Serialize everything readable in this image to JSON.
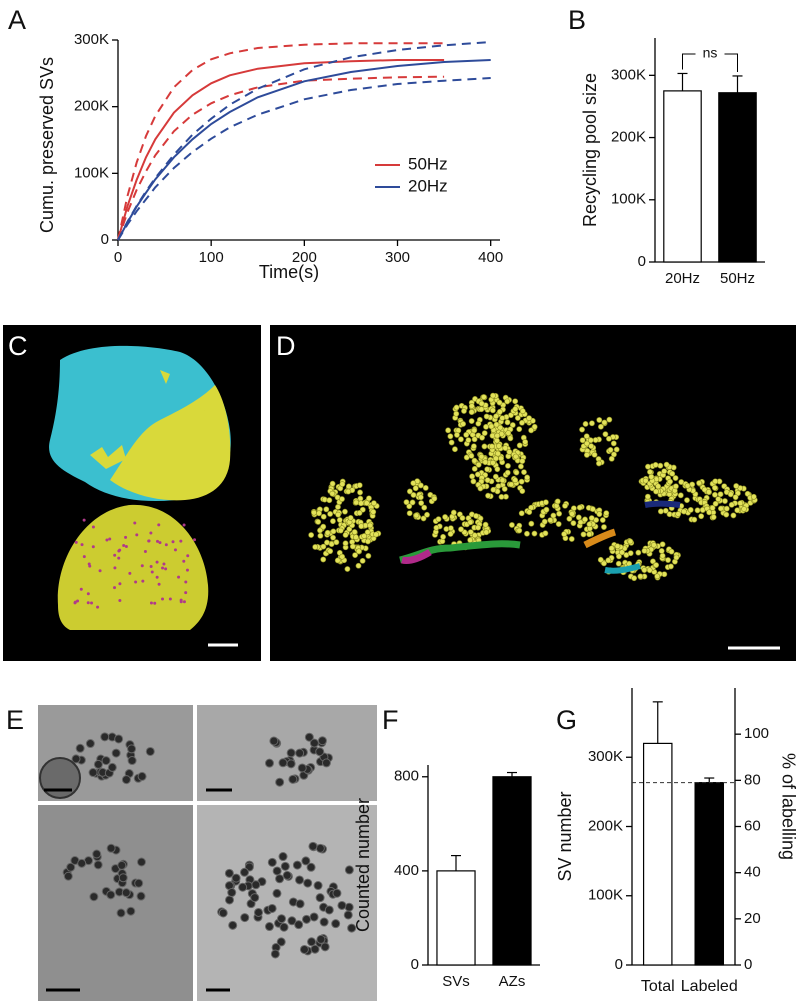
{
  "image_panels": [
    {
      "label": "C"
    },
    {
      "label": "D"
    },
    {
      "label": "E"
    }
  ],
  "chart_data": [
    {
      "type": "line",
      "panel": "A",
      "y_label": "Cumu. preserved SVs",
      "x_label": "Time(s)",
      "x": [
        0,
        10,
        20,
        30,
        40,
        60,
        80,
        100,
        120,
        150,
        200,
        250,
        300,
        350,
        400
      ],
      "xlim": [
        0,
        410
      ],
      "xticks": [
        0,
        100,
        200,
        300,
        400
      ],
      "ylim": [
        0,
        300000
      ],
      "yticks": [
        0,
        {
          "value": 100000,
          "label": "100K"
        },
        {
          "value": 200000,
          "label": "200K"
        },
        {
          "value": 300000,
          "label": "300K"
        }
      ],
      "series": [
        {
          "name": "50Hz",
          "color": "#d63a3a",
          "values": [
            0,
            50000,
            90000,
            124000,
            151000,
            191000,
            217000,
            235000,
            247000,
            257000,
            265000,
            268000,
            270000,
            270000,
            null
          ],
          "upper": [
            0,
            65000,
            116000,
            156000,
            186000,
            229000,
            255000,
            271000,
            280000,
            288000,
            293000,
            295000,
            295000,
            295000,
            null
          ],
          "lower": [
            0,
            41000,
            75000,
            103000,
            127000,
            163000,
            188000,
            205000,
            217000,
            229000,
            239000,
            242000,
            244000,
            245000,
            null
          ]
        },
        {
          "name": "20Hz",
          "color": "#2e4b9a",
          "values": [
            0,
            26000,
            50000,
            71000,
            91000,
            124000,
            151000,
            174000,
            192000,
            214000,
            238000,
            252000,
            261000,
            267000,
            270000
          ],
          "upper": [
            0,
            27000,
            51000,
            73000,
            93000,
            128000,
            158000,
            182000,
            203000,
            227000,
            256000,
            274000,
            285000,
            292000,
            297000
          ],
          "lower": [
            0,
            23000,
            43000,
            61000,
            79000,
            108000,
            132000,
            152000,
            169000,
            188000,
            211000,
            225000,
            234000,
            239000,
            243000
          ]
        }
      ]
    },
    {
      "type": "bar",
      "panel": "B",
      "y_label": "Recycling pool size",
      "annotation": "ns",
      "categories": [
        "20Hz",
        "50Hz"
      ],
      "values": [
        275000,
        272000
      ],
      "errors": [
        28000,
        27000
      ],
      "colors": [
        "#ffffff",
        "#000000"
      ],
      "ylim": [
        0,
        360000
      ],
      "yticks": [
        0,
        {
          "value": 100000,
          "label": "100K"
        },
        {
          "value": 200000,
          "label": "200K"
        },
        {
          "value": 300000,
          "label": "300K"
        }
      ]
    },
    {
      "type": "bar",
      "panel": "F",
      "y_label": "Counted number",
      "categories": [
        "SVs",
        "AZs"
      ],
      "values": [
        400,
        800
      ],
      "errors": [
        65,
        18
      ],
      "colors": [
        "#ffffff",
        "#000000"
      ],
      "ylim": [
        0,
        850
      ],
      "yticks": [
        0,
        400,
        800
      ]
    },
    {
      "type": "dual_bar",
      "panel": "G",
      "y_label": "SV number",
      "y2_label": "% of labelling",
      "categories": [
        "Total",
        "Labeled"
      ],
      "series": [
        {
          "color": "#ffffff",
          "values": [
            320000,
            null
          ],
          "errors": [
            60000,
            null
          ]
        },
        {
          "color": "#000000",
          "axis": "y2",
          "values": [
            null,
            79
          ],
          "errors": [
            null,
            2
          ]
        }
      ],
      "reference_line": 79,
      "ylim": [
        0,
        400000
      ],
      "yticks": [
        0,
        {
          "value": 100000,
          "label": "100K"
        },
        {
          "value": 200000,
          "label": "200K"
        },
        {
          "value": 300000,
          "label": "300K"
        }
      ],
      "y2lim": [
        0,
        120
      ],
      "y2ticks": [
        0,
        20,
        40,
        60,
        80,
        100
      ]
    }
  ]
}
